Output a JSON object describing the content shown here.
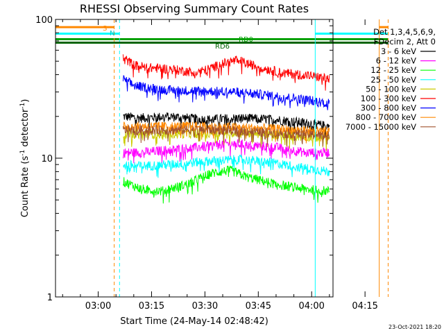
{
  "chart_data": {
    "type": "line",
    "title": "RHESSI Observing Summary Count Rates",
    "xlabel": "Start Time (24-May-14 02:48:42)",
    "ylabel": "Count Rate (s",
    "ylabel_sup": "-1",
    "ylabel_tail": " detector",
    "ylabel_tail_sup": "-1",
    "ylabel_close": ")",
    "yscale": "log",
    "ylim": [
      1,
      100
    ],
    "y_ticks": [
      {
        "value": 1,
        "label": "1"
      },
      {
        "value": 10,
        "label": "10"
      },
      {
        "value": 100,
        "label": "100"
      }
    ],
    "xlim_minutes": [
      -12,
      66
    ],
    "x_ticks": [
      {
        "value": 0,
        "label": "03:00"
      },
      {
        "value": 15,
        "label": "03:15"
      },
      {
        "value": 30,
        "label": "03:30"
      },
      {
        "value": 45,
        "label": "03:45"
      },
      {
        "value": 60,
        "label": "04:00"
      },
      {
        "value": 75,
        "label": "04:15"
      }
    ],
    "legend": {
      "placement": "right",
      "header_lines": [
        "Det 1,3,4,5,6,9,",
        "FDecim 2, Att 0"
      ]
    },
    "series": [
      {
        "name": "3 - 6 keV",
        "color": "#000000",
        "points": [
          [
            7,
            20
          ],
          [
            12,
            19.5
          ],
          [
            20,
            20
          ],
          [
            30,
            19
          ],
          [
            40,
            19.5
          ],
          [
            50,
            19
          ],
          [
            58,
            18
          ],
          [
            65,
            17
          ]
        ]
      },
      {
        "name": "6 - 12 keV",
        "color": "#ff00ff",
        "points": [
          [
            7,
            11
          ],
          [
            12,
            11
          ],
          [
            20,
            11.5
          ],
          [
            28,
            12
          ],
          [
            36,
            12.8
          ],
          [
            42,
            12.5
          ],
          [
            50,
            12
          ],
          [
            58,
            11
          ],
          [
            65,
            11
          ]
        ]
      },
      {
        "name": "12 - 25 keV",
        "color": "#00ff00",
        "points": [
          [
            7,
            6.8
          ],
          [
            12,
            6
          ],
          [
            18,
            5.8
          ],
          [
            25,
            6.5
          ],
          [
            32,
            7.8
          ],
          [
            37,
            8.2
          ],
          [
            42,
            7.3
          ],
          [
            50,
            6.5
          ],
          [
            58,
            6
          ],
          [
            65,
            5.8
          ]
        ]
      },
      {
        "name": "25 - 50 keV",
        "color": "#00ffff",
        "points": [
          [
            7,
            9
          ],
          [
            12,
            8.8
          ],
          [
            20,
            9
          ],
          [
            30,
            9.5
          ],
          [
            40,
            9.8
          ],
          [
            50,
            9.2
          ],
          [
            58,
            8.5
          ],
          [
            65,
            8
          ]
        ]
      },
      {
        "name": "50 - 100 keV",
        "color": "#cccc00",
        "points": [
          [
            7,
            15
          ],
          [
            15,
            15
          ],
          [
            25,
            15
          ],
          [
            35,
            15.5
          ],
          [
            45,
            15
          ],
          [
            55,
            14.5
          ],
          [
            65,
            14
          ]
        ]
      },
      {
        "name": "100 - 300 keV",
        "color": "#ff0000",
        "points": [
          [
            7,
            53
          ],
          [
            10,
            47
          ],
          [
            14,
            45
          ],
          [
            20,
            44
          ],
          [
            26,
            42
          ],
          [
            30,
            43
          ],
          [
            35,
            48
          ],
          [
            39,
            51
          ],
          [
            42,
            48
          ],
          [
            46,
            45
          ],
          [
            52,
            41
          ],
          [
            58,
            40
          ],
          [
            62,
            38.5
          ],
          [
            65,
            37
          ]
        ]
      },
      {
        "name": "300 - 800 keV",
        "color": "#0000ff",
        "points": [
          [
            7,
            37
          ],
          [
            10,
            33.5
          ],
          [
            15,
            32
          ],
          [
            20,
            31
          ],
          [
            30,
            30.5
          ],
          [
            40,
            30
          ],
          [
            50,
            28
          ],
          [
            58,
            26.5
          ],
          [
            65,
            25
          ]
        ]
      },
      {
        "name": "800 - 7000 keV",
        "color": "#ff8800",
        "points": [
          [
            7,
            17
          ],
          [
            15,
            17
          ],
          [
            25,
            17
          ],
          [
            35,
            16.8
          ],
          [
            45,
            16.5
          ],
          [
            55,
            16
          ],
          [
            65,
            15.5
          ]
        ]
      },
      {
        "name": "7000 - 15000 keV",
        "color": "#a0522d",
        "points": [
          [
            7,
            16
          ],
          [
            15,
            16
          ],
          [
            25,
            16
          ],
          [
            35,
            16
          ],
          [
            45,
            15.5
          ],
          [
            55,
            15
          ],
          [
            65,
            14.5
          ]
        ]
      }
    ],
    "annotations": {
      "s_label": "S",
      "n_label": "N",
      "rd0_label": "RD0",
      "rd6_label": "RD6"
    },
    "status_lines": [
      {
        "label": "S",
        "color": "#ff8800",
        "y": 88,
        "segments": [
          [
            -12,
            4.5
          ],
          [
            79,
            81.5
          ]
        ]
      },
      {
        "label": "N",
        "color": "#00ffff",
        "y": 79,
        "segments": [
          [
            -12,
            6
          ],
          [
            61,
            81.5
          ]
        ]
      },
      {
        "label": "RD0",
        "color": "#00a000",
        "y": 72,
        "segments": [
          [
            -12,
            81.5
          ]
        ]
      },
      {
        "label": "RD6",
        "color": "#006400",
        "y": 68,
        "segments": [
          [
            -12,
            81.5
          ]
        ]
      }
    ],
    "event_lines": [
      {
        "label": "S",
        "color": "#ff8800",
        "x": 4.5,
        "dashed": true
      },
      {
        "label": "N",
        "color": "#00ffff",
        "x": 6,
        "dashed": true
      },
      {
        "label": "S",
        "color": "#ff8800",
        "x": 79,
        "dashed": false
      },
      {
        "label": "S",
        "color": "#ff8800",
        "x": 81.5,
        "dashed": true
      },
      {
        "label": "N",
        "color": "#00ffff",
        "x": -12,
        "dashed": false
      },
      {
        "label": "N",
        "color": "#00ffff",
        "x": 61,
        "dashed": false
      }
    ],
    "data_interval_minutes": [
      7,
      65
    ],
    "stamp": "23-Oct-2021 18:20"
  }
}
